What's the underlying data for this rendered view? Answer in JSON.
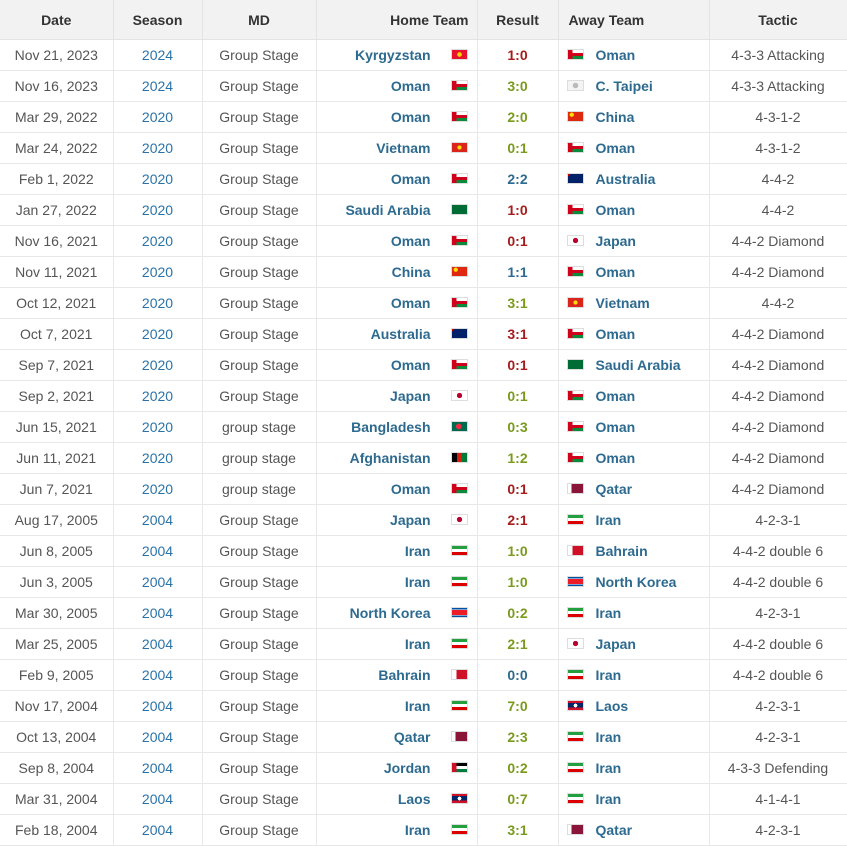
{
  "headers": {
    "date": "Date",
    "season": "Season",
    "md": "MD",
    "home": "Home Team",
    "result": "Result",
    "away": "Away Team",
    "tactic": "Tactic"
  },
  "colors": {
    "loss": "#a61c1c",
    "win": "#7a9a1e",
    "draw": "#2d6a8f"
  },
  "rows": [
    {
      "date": "Nov 21, 2023",
      "season": "2024",
      "md": "Group Stage",
      "home": "Kyrgyzstan",
      "home_flag": "kyrgyzstan",
      "result": "1:0",
      "outcome": "loss",
      "away": "Oman",
      "away_flag": "oman",
      "tactic": "4-3-3 Attacking"
    },
    {
      "date": "Nov 16, 2023",
      "season": "2024",
      "md": "Group Stage",
      "home": "Oman",
      "home_flag": "oman",
      "result": "3:0",
      "outcome": "win",
      "away": "C. Taipei",
      "away_flag": "taipei",
      "tactic": "4-3-3 Attacking"
    },
    {
      "date": "Mar 29, 2022",
      "season": "2020",
      "md": "Group Stage",
      "home": "Oman",
      "home_flag": "oman",
      "result": "2:0",
      "outcome": "win",
      "away": "China",
      "away_flag": "china",
      "tactic": "4-3-1-2"
    },
    {
      "date": "Mar 24, 2022",
      "season": "2020",
      "md": "Group Stage",
      "home": "Vietnam",
      "home_flag": "vietnam",
      "result": "0:1",
      "outcome": "win",
      "away": "Oman",
      "away_flag": "oman",
      "tactic": "4-3-1-2"
    },
    {
      "date": "Feb 1, 2022",
      "season": "2020",
      "md": "Group Stage",
      "home": "Oman",
      "home_flag": "oman",
      "result": "2:2",
      "outcome": "draw",
      "away": "Australia",
      "away_flag": "australia",
      "tactic": "4-4-2"
    },
    {
      "date": "Jan 27, 2022",
      "season": "2020",
      "md": "Group Stage",
      "home": "Saudi Arabia",
      "home_flag": "saudi",
      "result": "1:0",
      "outcome": "loss",
      "away": "Oman",
      "away_flag": "oman",
      "tactic": "4-4-2"
    },
    {
      "date": "Nov 16, 2021",
      "season": "2020",
      "md": "Group Stage",
      "home": "Oman",
      "home_flag": "oman",
      "result": "0:1",
      "outcome": "loss",
      "away": "Japan",
      "away_flag": "japan",
      "tactic": "4-4-2 Diamond"
    },
    {
      "date": "Nov 11, 2021",
      "season": "2020",
      "md": "Group Stage",
      "home": "China",
      "home_flag": "china",
      "result": "1:1",
      "outcome": "draw",
      "away": "Oman",
      "away_flag": "oman",
      "tactic": "4-4-2 Diamond"
    },
    {
      "date": "Oct 12, 2021",
      "season": "2020",
      "md": "Group Stage",
      "home": "Oman",
      "home_flag": "oman",
      "result": "3:1",
      "outcome": "win",
      "away": "Vietnam",
      "away_flag": "vietnam",
      "tactic": "4-4-2"
    },
    {
      "date": "Oct 7, 2021",
      "season": "2020",
      "md": "Group Stage",
      "home": "Australia",
      "home_flag": "australia",
      "result": "3:1",
      "outcome": "loss",
      "away": "Oman",
      "away_flag": "oman",
      "tactic": "4-4-2 Diamond"
    },
    {
      "date": "Sep 7, 2021",
      "season": "2020",
      "md": "Group Stage",
      "home": "Oman",
      "home_flag": "oman",
      "result": "0:1",
      "outcome": "loss",
      "away": "Saudi Arabia",
      "away_flag": "saudi",
      "tactic": "4-4-2 Diamond"
    },
    {
      "date": "Sep 2, 2021",
      "season": "2020",
      "md": "Group Stage",
      "home": "Japan",
      "home_flag": "japan",
      "result": "0:1",
      "outcome": "win",
      "away": "Oman",
      "away_flag": "oman",
      "tactic": "4-4-2 Diamond"
    },
    {
      "date": "Jun 15, 2021",
      "season": "2020",
      "md": "group stage",
      "home": "Bangladesh",
      "home_flag": "bangladesh",
      "result": "0:3",
      "outcome": "win",
      "away": "Oman",
      "away_flag": "oman",
      "tactic": "4-4-2 Diamond"
    },
    {
      "date": "Jun 11, 2021",
      "season": "2020",
      "md": "group stage",
      "home": "Afghanistan",
      "home_flag": "afghanistan",
      "result": "1:2",
      "outcome": "win",
      "away": "Oman",
      "away_flag": "oman",
      "tactic": "4-4-2 Diamond"
    },
    {
      "date": "Jun 7, 2021",
      "season": "2020",
      "md": "group stage",
      "home": "Oman",
      "home_flag": "oman",
      "result": "0:1",
      "outcome": "loss",
      "away": "Qatar",
      "away_flag": "qatar",
      "tactic": "4-4-2 Diamond"
    },
    {
      "date": "Aug 17, 2005",
      "season": "2004",
      "md": "Group Stage",
      "home": "Japan",
      "home_flag": "japan",
      "result": "2:1",
      "outcome": "loss",
      "away": "Iran",
      "away_flag": "iran",
      "tactic": "4-2-3-1"
    },
    {
      "date": "Jun 8, 2005",
      "season": "2004",
      "md": "Group Stage",
      "home": "Iran",
      "home_flag": "iran",
      "result": "1:0",
      "outcome": "win",
      "away": "Bahrain",
      "away_flag": "bahrain",
      "tactic": "4-4-2 double 6"
    },
    {
      "date": "Jun 3, 2005",
      "season": "2004",
      "md": "Group Stage",
      "home": "Iran",
      "home_flag": "iran",
      "result": "1:0",
      "outcome": "win",
      "away": "North Korea",
      "away_flag": "nkorea",
      "tactic": "4-4-2 double 6"
    },
    {
      "date": "Mar 30, 2005",
      "season": "2004",
      "md": "Group Stage",
      "home": "North Korea",
      "home_flag": "nkorea",
      "result": "0:2",
      "outcome": "win",
      "away": "Iran",
      "away_flag": "iran",
      "tactic": "4-2-3-1"
    },
    {
      "date": "Mar 25, 2005",
      "season": "2004",
      "md": "Group Stage",
      "home": "Iran",
      "home_flag": "iran",
      "result": "2:1",
      "outcome": "win",
      "away": "Japan",
      "away_flag": "japan",
      "tactic": "4-4-2 double 6"
    },
    {
      "date": "Feb 9, 2005",
      "season": "2004",
      "md": "Group Stage",
      "home": "Bahrain",
      "home_flag": "bahrain",
      "result": "0:0",
      "outcome": "draw",
      "away": "Iran",
      "away_flag": "iran",
      "tactic": "4-4-2 double 6"
    },
    {
      "date": "Nov 17, 2004",
      "season": "2004",
      "md": "Group Stage",
      "home": "Iran",
      "home_flag": "iran",
      "result": "7:0",
      "outcome": "win",
      "away": "Laos",
      "away_flag": "laos",
      "tactic": "4-2-3-1"
    },
    {
      "date": "Oct 13, 2004",
      "season": "2004",
      "md": "Group Stage",
      "home": "Qatar",
      "home_flag": "qatar",
      "result": "2:3",
      "outcome": "win",
      "away": "Iran",
      "away_flag": "iran",
      "tactic": "4-2-3-1"
    },
    {
      "date": "Sep 8, 2004",
      "season": "2004",
      "md": "Group Stage",
      "home": "Jordan",
      "home_flag": "jordan",
      "result": "0:2",
      "outcome": "win",
      "away": "Iran",
      "away_flag": "iran",
      "tactic": "4-3-3 Defending"
    },
    {
      "date": "Mar 31, 2004",
      "season": "2004",
      "md": "Group Stage",
      "home": "Laos",
      "home_flag": "laos",
      "result": "0:7",
      "outcome": "win",
      "away": "Iran",
      "away_flag": "iran",
      "tactic": "4-1-4-1"
    },
    {
      "date": "Feb 18, 2004",
      "season": "2004",
      "md": "Group Stage",
      "home": "Iran",
      "home_flag": "iran",
      "result": "3:1",
      "outcome": "win",
      "away": "Qatar",
      "away_flag": "qatar",
      "tactic": "4-2-3-1"
    }
  ]
}
